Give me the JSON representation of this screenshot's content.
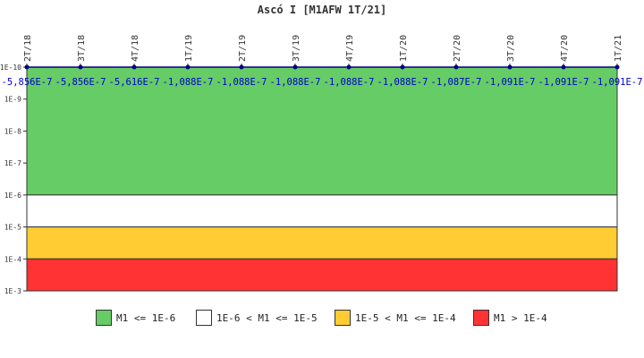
{
  "chart_data": {
    "type": "line",
    "title": "Ascó I [M1AFW 1T/21]",
    "x": [
      "2T/18",
      "3T/18",
      "4T/18",
      "1T/19",
      "2T/19",
      "3T/19",
      "4T/19",
      "1T/20",
      "2T/20",
      "3T/20",
      "4T/20",
      "1T/21"
    ],
    "values": [
      -5.856e-07,
      -5.856e-07,
      -5.616e-07,
      -1.088e-07,
      -1.088e-07,
      -1.088e-07,
      -1.088e-07,
      -1.088e-07,
      -1.087e-07,
      -1.091e-07,
      -1.091e-07,
      -1.091e-07
    ],
    "value_labels": [
      "-5,856E-7",
      "-5,856E-7",
      "-5,616E-7",
      "-1,088E-7",
      "-1,088E-7",
      "-1,088E-7",
      "-1,088E-7",
      "-1,088E-7",
      "-1,087E-7",
      "-1,091E-7",
      "-1,091E-7",
      "-1,091E-7"
    ],
    "y_scale": "log",
    "y_range_top_to_bottom": [
      1e-10,
      0.001
    ],
    "y_ticks": [
      "1E-10",
      "1E-9",
      "1E-8",
      "1E-7",
      "1E-6",
      "1E-5",
      "1E-4",
      "1E-3"
    ],
    "bands": [
      {
        "from": 1e-10,
        "to": 1e-06,
        "color": "#66cc66"
      },
      {
        "from": 1e-06,
        "to": 1e-05,
        "color": "#ffffff"
      },
      {
        "from": 1e-05,
        "to": 0.0001,
        "color": "#ffcc33"
      },
      {
        "from": 0.0001,
        "to": 0.001,
        "color": "#ff3333"
      }
    ],
    "series_color": "#000080",
    "label_color": "#0000cc",
    "legend": [
      {
        "label": "M1 <= 1E-6",
        "color": "#66cc66"
      },
      {
        "label": "1E-6 < M1 <= 1E-5",
        "color": "#ffffff"
      },
      {
        "label": "1E-5 < M1 <= 1E-4",
        "color": "#ffcc33"
      },
      {
        "label": "M1 > 1E-4",
        "color": "#ff3333"
      }
    ],
    "legend_position": "bottom"
  }
}
